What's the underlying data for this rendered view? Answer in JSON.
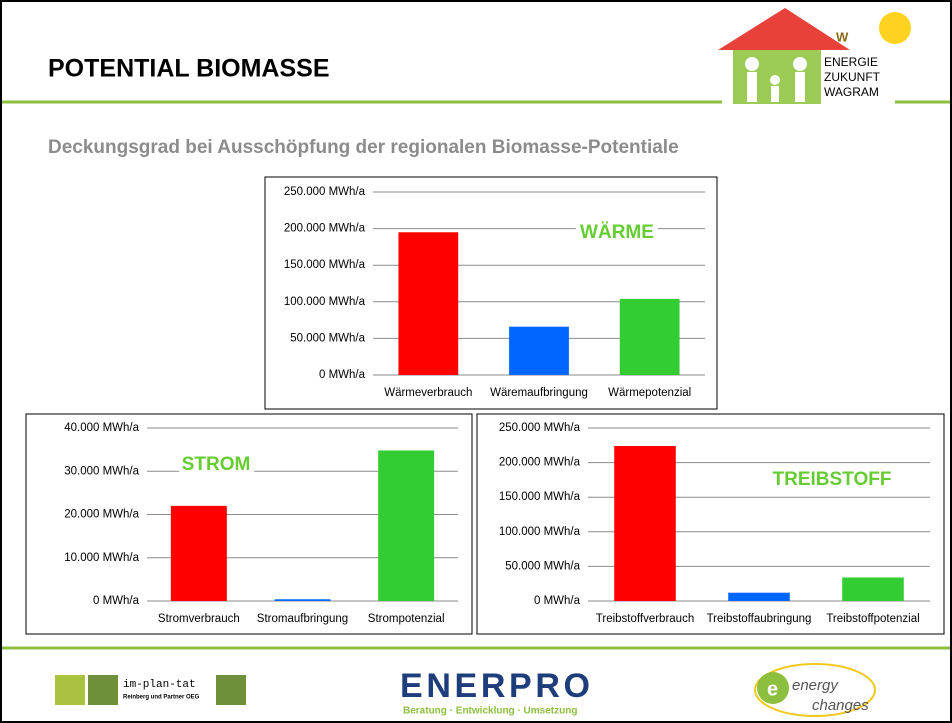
{
  "header": {
    "title": "POTENTIAL BIOMASSE",
    "subtitle": "Deckungsgrad bei Ausschöpfung der regionalen Biomasse-Potentiale"
  },
  "logos": {
    "top": [
      "ENERGIE",
      "ZUKUNFT",
      "WAGRAM"
    ],
    "implantat": [
      "im-plan-tat",
      "Reinberg und Partner OEG"
    ],
    "enerpro": [
      "ENERPRO",
      "Beratung · Entwicklung · Umsetzung"
    ],
    "energychanges": [
      "energy",
      "changes"
    ]
  },
  "chart_data": [
    {
      "type": "bar",
      "annotation": "WÄRME",
      "categories": [
        "Wärmeverbrauch",
        "Wäremaufbringung",
        "Wärmepotenzial"
      ],
      "values": [
        195000,
        66000,
        104000
      ],
      "colors": [
        "#ff0000",
        "#0066ff",
        "#33cc33"
      ],
      "ylim": [
        0,
        250000
      ],
      "yticks": [
        {
          "value": 0,
          "label": "0 MWh/a"
        },
        {
          "value": 50000,
          "label": "50.000 MWh/a"
        },
        {
          "value": 100000,
          "label": "100.000 MWh/a"
        },
        {
          "value": 150000,
          "label": "150.000 MWh/a"
        },
        {
          "value": 200000,
          "label": "200.000 MWh/a"
        },
        {
          "value": 250000,
          "label": "250.000 MWh/a"
        }
      ],
      "grid": true
    },
    {
      "type": "bar",
      "annotation": "STROM",
      "categories": [
        "Stromverbrauch",
        "Stromaufbringung",
        "Strompotenzial"
      ],
      "values": [
        22000,
        400,
        34800
      ],
      "colors": [
        "#ff0000",
        "#0066ff",
        "#33cc33"
      ],
      "ylim": [
        0,
        40000
      ],
      "yticks": [
        {
          "value": 0,
          "label": "0 MWh/a"
        },
        {
          "value": 10000,
          "label": "10.000 MWh/a"
        },
        {
          "value": 20000,
          "label": "20.000 MWh/a"
        },
        {
          "value": 30000,
          "label": "30.000 MWh/a"
        },
        {
          "value": 40000,
          "label": "40.000 MWh/a"
        }
      ],
      "grid": true
    },
    {
      "type": "bar",
      "annotation": "TREIBSTOFF",
      "categories": [
        "Treibstoffverbrauch",
        "Treibstoffaubringung",
        "Treibstoffpotenzial"
      ],
      "values": [
        224000,
        12000,
        34000
      ],
      "colors": [
        "#ff0000",
        "#0066ff",
        "#33cc33"
      ],
      "ylim": [
        0,
        250000
      ],
      "yticks": [
        {
          "value": 0,
          "label": "0 MWh/a"
        },
        {
          "value": 50000,
          "label": "50.000 MWh/a"
        },
        {
          "value": 100000,
          "label": "100.000 MWh/a"
        },
        {
          "value": 150000,
          "label": "150.000 MWh/a"
        },
        {
          "value": 200000,
          "label": "200.000 MWh/a"
        },
        {
          "value": 250000,
          "label": "250.000 MWh/a"
        }
      ],
      "grid": true
    }
  ]
}
